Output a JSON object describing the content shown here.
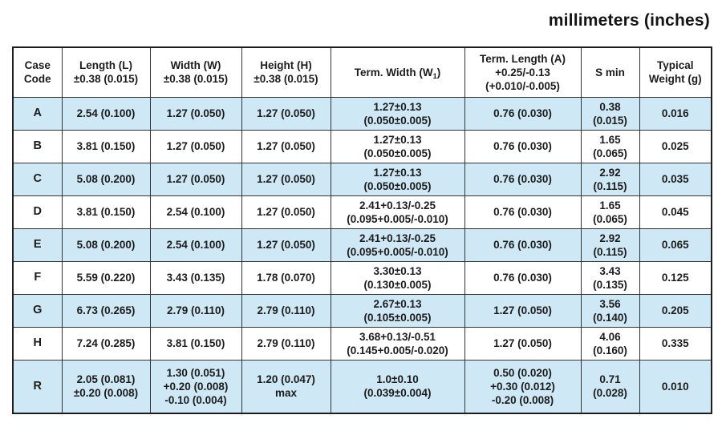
{
  "page_title": "millimeters (inches)",
  "colors": {
    "row_shade": "#cfe8f5",
    "border": "#333333",
    "outer_border": "#1d1d1d",
    "text": "#1c1c1c"
  },
  "table": {
    "headers": {
      "case_code": {
        "line1": "Case",
        "line2": "Code"
      },
      "length": {
        "line1": "Length (L)",
        "line2": "±0.38 (0.015)"
      },
      "width": {
        "line1": "Width (W)",
        "line2": "±0.38 (0.015)"
      },
      "height": {
        "line1": "Height (H)",
        "line2": "±0.38 (0.015)"
      },
      "term_width": {
        "pre": "Term. Width (W",
        "sub": "1",
        "post": ")"
      },
      "term_length": {
        "line1": "Term. Length (A)",
        "line2": "+0.25/-0.13",
        "line3": "(+0.010/-0.005)"
      },
      "s_min": {
        "line1": "S min"
      },
      "typical_weight": {
        "line1": "Typical",
        "line2": "Weight (g)"
      }
    },
    "rows": [
      {
        "code": "A",
        "shaded": true,
        "length": [
          "2.54 (0.100)"
        ],
        "width": [
          "1.27 (0.050)"
        ],
        "height": [
          "1.27 (0.050)"
        ],
        "term_width": [
          "1.27±0.13",
          "(0.050±0.005)"
        ],
        "term_length": [
          "0.76 (0.030)"
        ],
        "s_min": [
          "0.38",
          "(0.015)"
        ],
        "weight": [
          "0.016"
        ]
      },
      {
        "code": "B",
        "shaded": false,
        "length": [
          "3.81 (0.150)"
        ],
        "width": [
          "1.27 (0.050)"
        ],
        "height": [
          "1.27 (0.050)"
        ],
        "term_width": [
          "1.27±0.13",
          "(0.050±0.005)"
        ],
        "term_length": [
          "0.76 (0.030)"
        ],
        "s_min": [
          "1.65",
          "(0.065)"
        ],
        "weight": [
          "0.025"
        ]
      },
      {
        "code": "C",
        "shaded": true,
        "length": [
          "5.08 (0.200)"
        ],
        "width": [
          "1.27 (0.050)"
        ],
        "height": [
          "1.27 (0.050)"
        ],
        "term_width": [
          "1.27±0.13",
          "(0.050±0.005)"
        ],
        "term_length": [
          "0.76 (0.030)"
        ],
        "s_min": [
          "2.92",
          "(0.115)"
        ],
        "weight": [
          "0.035"
        ]
      },
      {
        "code": "D",
        "shaded": false,
        "length": [
          "3.81 (0.150)"
        ],
        "width": [
          "2.54 (0.100)"
        ],
        "height": [
          "1.27 (0.050)"
        ],
        "term_width": [
          "2.41+0.13/-0.25",
          "(0.095+0.005/-0.010)"
        ],
        "term_length": [
          "0.76 (0.030)"
        ],
        "s_min": [
          "1.65",
          "(0.065)"
        ],
        "weight": [
          "0.045"
        ]
      },
      {
        "code": "E",
        "shaded": true,
        "length": [
          "5.08 (0.200)"
        ],
        "width": [
          "2.54 (0.100)"
        ],
        "height": [
          "1.27 (0.050)"
        ],
        "term_width": [
          "2.41+0.13/-0.25",
          "(0.095+0.005/-0.010)"
        ],
        "term_length": [
          "0.76 (0.030)"
        ],
        "s_min": [
          "2.92",
          "(0.115)"
        ],
        "weight": [
          "0.065"
        ]
      },
      {
        "code": "F",
        "shaded": false,
        "length": [
          "5.59 (0.220)"
        ],
        "width": [
          "3.43 (0.135)"
        ],
        "height": [
          "1.78 (0.070)"
        ],
        "term_width": [
          "3.30±0.13",
          "(0.130±0.005)"
        ],
        "term_length": [
          "0.76 (0.030)"
        ],
        "s_min": [
          "3.43",
          "(0.135)"
        ],
        "weight": [
          "0.125"
        ]
      },
      {
        "code": "G",
        "shaded": true,
        "length": [
          "6.73 (0.265)"
        ],
        "width": [
          "2.79 (0.110)"
        ],
        "height": [
          "2.79 (0.110)"
        ],
        "term_width": [
          "2.67±0.13",
          "(0.105±0.005)"
        ],
        "term_length": [
          "1.27 (0.050)"
        ],
        "s_min": [
          "3.56",
          "(0.140)"
        ],
        "weight": [
          "0.205"
        ]
      },
      {
        "code": "H",
        "shaded": false,
        "length": [
          "7.24 (0.285)"
        ],
        "width": [
          "3.81 (0.150)"
        ],
        "height": [
          "2.79 (0.110)"
        ],
        "term_width": [
          "3.68+0.13/-0.51",
          "(0.145+0.005/-0.020)"
        ],
        "term_length": [
          "1.27 (0.050)"
        ],
        "s_min": [
          "4.06",
          "(0.160)"
        ],
        "weight": [
          "0.335"
        ]
      },
      {
        "code": "R",
        "shaded": true,
        "length": [
          "2.05 (0.081)",
          "±0.20 (0.008)"
        ],
        "width": [
          "1.30 (0.051)",
          "+0.20 (0.008)",
          "-0.10 (0.004)"
        ],
        "height": [
          "1.20 (0.047)",
          "max"
        ],
        "term_width": [
          "1.0±0.10",
          "(0.039±0.004)"
        ],
        "term_length": [
          "0.50 (0.020)",
          "+0.30 (0.012)",
          "-0.20 (0.008)"
        ],
        "s_min": [
          "0.71",
          "(0.028)"
        ],
        "weight": [
          "0.010"
        ]
      }
    ]
  }
}
